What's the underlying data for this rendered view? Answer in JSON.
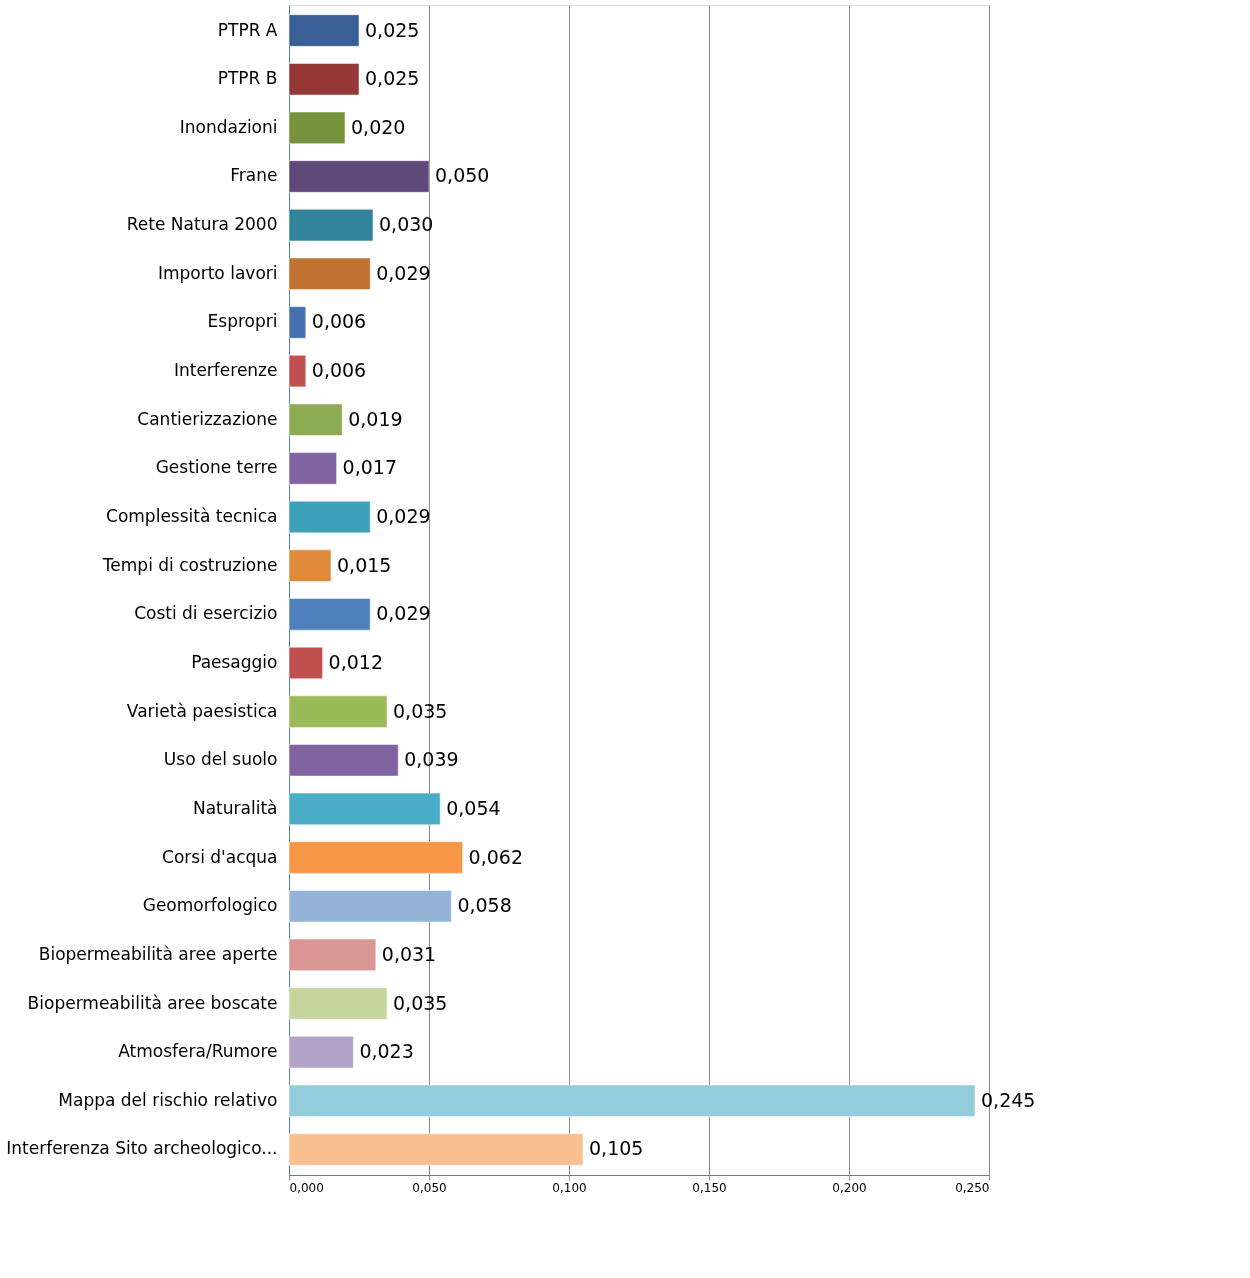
{
  "chart_data": {
    "type": "bar",
    "orientation": "horizontal",
    "categories": [
      "PTPR A",
      "PTPR B",
      "Inondazioni",
      "Frane",
      "Rete Natura 2000",
      "Importo lavori",
      "Espropri",
      "Interferenze",
      "Cantierizzazione",
      "Gestione terre",
      "Complessità tecnica",
      "Tempi di costruzione",
      "Costi di esercizio",
      "Paesaggio",
      "Varietà paesistica",
      "Uso del suolo",
      "Naturalità",
      "Corsi d'acqua",
      "Geomorfologico",
      "Biopermeabilità aree aperte",
      "Biopermeabilità aree boscate",
      "Atmosfera/Rumore",
      "Mappa del rischio relativo",
      "Interferenza Sito archeologico..."
    ],
    "values": [
      0.025,
      0.025,
      0.02,
      0.05,
      0.03,
      0.029,
      0.006,
      0.006,
      0.019,
      0.017,
      0.029,
      0.015,
      0.029,
      0.012,
      0.035,
      0.039,
      0.054,
      0.062,
      0.058,
      0.031,
      0.035,
      0.023,
      0.245,
      0.105
    ],
    "value_labels": [
      "0,025",
      "0,025",
      "0,020",
      "0,050",
      "0,030",
      "0,029",
      "0,006",
      "0,006",
      "0,019",
      "0,017",
      "0,029",
      "0,015",
      "0,029",
      "0,012",
      "0,035",
      "0,039",
      "0,054",
      "0,062",
      "0,058",
      "0,031",
      "0,035",
      "0,023",
      "0,245",
      "0,105"
    ],
    "colors": [
      "#3a5f96",
      "#953735",
      "#76923c",
      "#5f497a",
      "#31849b",
      "#c0702f",
      "#4470b0",
      "#c0504d",
      "#8cab52",
      "#7f64a2",
      "#3ba0b8",
      "#e08a3c",
      "#4f81bd",
      "#c0504d",
      "#9bbb59",
      "#8064a2",
      "#4bacc6",
      "#f79646",
      "#95b3d7",
      "#d99694",
      "#c3d69b",
      "#b2a2c7",
      "#92cddc",
      "#fabf8f"
    ],
    "xlim": [
      0,
      0.25
    ],
    "xticks": [
      {
        "value": 0,
        "label": "0,000"
      },
      {
        "value": 0.05,
        "label": "0,050"
      },
      {
        "value": 0.1,
        "label": "0,100"
      },
      {
        "value": 0.15,
        "label": "0,150"
      },
      {
        "value": 0.2,
        "label": "0,200"
      },
      {
        "value": 0.25,
        "label": "0,250"
      }
    ],
    "grid": "x",
    "legend": false
  }
}
